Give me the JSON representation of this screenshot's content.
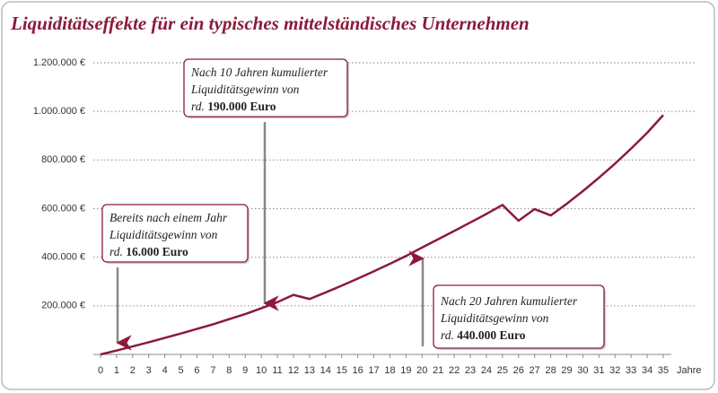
{
  "chart_data": {
    "type": "line",
    "title": "Liquiditätseffekte für ein typisches mittelständisches Unternehmen",
    "x_label": "Jahre",
    "x": [
      0,
      1,
      2,
      3,
      4,
      5,
      6,
      7,
      8,
      9,
      10,
      11,
      12,
      13,
      14,
      15,
      16,
      17,
      18,
      19,
      20,
      21,
      22,
      23,
      24,
      25,
      26,
      27,
      28,
      29,
      30,
      31,
      32,
      33,
      34,
      35
    ],
    "values": [
      0,
      16000,
      33000,
      50000,
      68000,
      86000,
      105000,
      124000,
      145000,
      166000,
      190000,
      215000,
      245000,
      228000,
      255000,
      283000,
      312000,
      342000,
      373000,
      405000,
      440000,
      474000,
      508000,
      543000,
      578000,
      615000,
      550000,
      598000,
      572000,
      620000,
      672000,
      727000,
      785000,
      847000,
      912000,
      985000
    ],
    "color": "#8b1a3a",
    "xlim": [
      0,
      35
    ],
    "xticks": [
      0,
      1,
      2,
      3,
      4,
      5,
      6,
      7,
      8,
      9,
      10,
      11,
      12,
      13,
      14,
      15,
      16,
      17,
      18,
      19,
      20,
      21,
      22,
      23,
      24,
      25,
      26,
      27,
      28,
      29,
      30,
      31,
      32,
      33,
      34,
      35
    ],
    "ylim": [
      0,
      1200000
    ],
    "yticks": [
      {
        "value": 200000,
        "label": "200.000 €"
      },
      {
        "value": 400000,
        "label": "400.000 €"
      },
      {
        "value": 600000,
        "label": "600.000 €"
      },
      {
        "value": 800000,
        "label": "800.000 €"
      },
      {
        "value": 1000000,
        "label": "1.000.000 €"
      },
      {
        "value": 1200000,
        "label": "1.200.000 €"
      }
    ],
    "grid": true,
    "annotations": [
      {
        "lines": [
          "Nach 10 Jahren kumulierter",
          "Liquiditätsgewinn von"
        ],
        "prefix": "rd. ",
        "bold": "190.000 Euro"
      },
      {
        "lines": [
          "Bereits nach einem Jahr",
          "Liquiditätsgewinn von"
        ],
        "prefix": "rd. ",
        "bold": "16.000 Euro"
      },
      {
        "lines": [
          "Nach 20 Jahren kumulierter",
          "Liquiditätsgewinn von"
        ],
        "prefix": "rd. ",
        "bold": "440.000 Euro"
      }
    ]
  }
}
